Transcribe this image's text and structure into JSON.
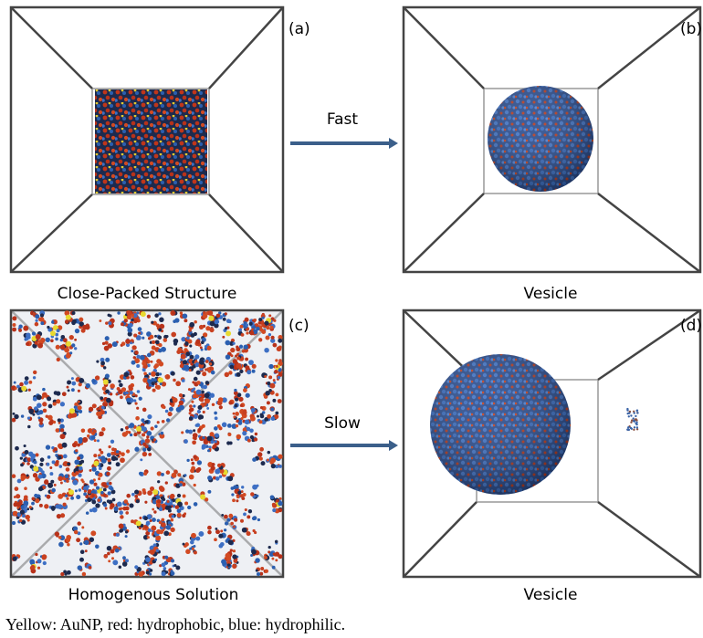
{
  "panels": [
    {
      "label": "(a)",
      "caption": "Close-Packed Structure"
    },
    {
      "label": "(b)",
      "caption": "Vesicle"
    },
    {
      "label": "(c)",
      "caption": "Homogenous Solution"
    },
    {
      "label": "(d)",
      "caption": "Vesicle"
    }
  ],
  "arrows": [
    {
      "text": "Fast"
    },
    {
      "text": "Slow"
    }
  ],
  "legend": "Yellow: AuNP, red: hydrophobic, blue: hydrophilic."
}
